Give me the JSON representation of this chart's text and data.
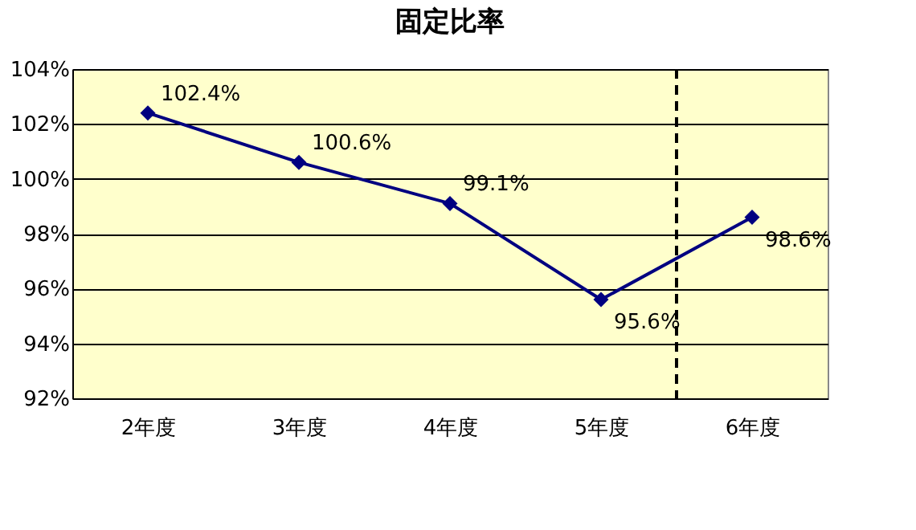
{
  "chart_data": {
    "type": "line",
    "title": "固定比率",
    "x": [
      2,
      3,
      4,
      5,
      6
    ],
    "xticks": [
      {
        "value": 2,
        "label": "2年度"
      },
      {
        "value": 3,
        "label": "3年度"
      },
      {
        "value": 4,
        "label": "4年度"
      },
      {
        "value": 5,
        "label": "5年度"
      },
      {
        "value": 6,
        "label": "6年度"
      }
    ],
    "xlim": [
      1.5,
      6.5
    ],
    "series": [
      {
        "color": "#000080",
        "values": [
          102.4,
          100.6,
          99.1,
          95.6,
          98.6
        ],
        "value_labels": [
          "102.4%",
          "100.6%",
          "99.1%",
          "95.6%",
          "98.6%"
        ]
      }
    ],
    "ylim": [
      92,
      104
    ],
    "yticks": [
      {
        "value": 92,
        "label": "92%"
      },
      {
        "value": 94,
        "label": "94%"
      },
      {
        "value": 96,
        "label": "96%"
      },
      {
        "value": 98,
        "label": "98%"
      },
      {
        "value": 100,
        "label": "100%"
      },
      {
        "value": 102,
        "label": "102%"
      },
      {
        "value": 104,
        "label": "104%"
      }
    ],
    "grid": "y",
    "marker": "diamond",
    "line_style": "solid",
    "ref_lines": [
      {
        "axis": "x",
        "value": 5.5,
        "line_style": "dashed",
        "color": "#000000"
      }
    ]
  }
}
